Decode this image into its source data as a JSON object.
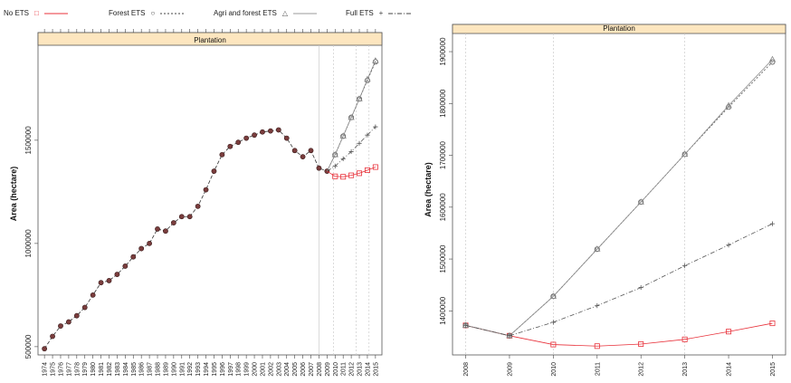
{
  "legend": [
    {
      "label": "No ETS",
      "symbol": "□",
      "color": "#e8313a",
      "dash": ""
    },
    {
      "label": "Forest ETS",
      "symbol": "○",
      "color": "#444444",
      "dash": "3,2"
    },
    {
      "label": "Agri and forest ETS",
      "symbol": "△",
      "color": "#888888",
      "dash": ""
    },
    {
      "label": "Full ETS",
      "symbol": "+",
      "color": "#444444",
      "dash": "5,2,1,2"
    }
  ],
  "chart_data": [
    {
      "type": "line",
      "strip_label": "Plantation",
      "ylabel": "Area (hectare)",
      "xlabel": "",
      "ylim": [
        460000,
        1960000
      ],
      "yticks": [
        500000,
        1000000,
        1500000
      ],
      "ytick_labels": [
        "500000",
        "1000000",
        "1500000"
      ],
      "x": [
        1974,
        1975,
        1976,
        1977,
        1978,
        1979,
        1980,
        1981,
        1982,
        1983,
        1984,
        1985,
        1986,
        1987,
        1988,
        1989,
        1990,
        1991,
        1992,
        1993,
        1994,
        1995,
        1996,
        1997,
        1998,
        1999,
        2000,
        2001,
        2002,
        2003,
        2004,
        2005,
        2006,
        2007,
        2008,
        2009,
        2010,
        2011,
        2012,
        2013,
        2014,
        2015
      ],
      "x_labels": [
        "1974",
        "1975",
        "1976",
        "1977",
        "1978",
        "1979",
        "1980",
        "1981",
        "1982",
        "1983",
        "1984",
        "1985",
        "1986",
        "1987",
        "1988",
        "1989",
        "1990",
        "1991",
        "1992",
        "1993",
        "1994",
        "1995",
        "1996",
        "1997",
        "1998",
        "1999",
        "2000",
        "2001",
        "2002",
        "2003",
        "2004",
        "2005",
        "2006",
        "2007",
        "2008",
        "2009",
        "2010",
        "2011",
        "2012",
        "2013",
        "2014",
        "2015"
      ],
      "vlines": [
        2008,
        2009.8,
        2012.6,
        2014.2
      ],
      "historical": {
        "x": [
          1974,
          1975,
          1976,
          1977,
          1978,
          1979,
          1980,
          1981,
          1982,
          1983,
          1984,
          1985,
          1986,
          1987,
          1988,
          1989,
          1990,
          1991,
          1992,
          1993,
          1994,
          1995,
          1996,
          1997,
          1998,
          1999,
          2000,
          2001,
          2002,
          2003,
          2004,
          2005,
          2006,
          2007,
          2008,
          2009
        ],
        "values": [
          490000,
          550000,
          600000,
          620000,
          650000,
          690000,
          750000,
          810000,
          820000,
          850000,
          890000,
          935000,
          975000,
          1000000,
          1070000,
          1060000,
          1100000,
          1130000,
          1130000,
          1180000,
          1260000,
          1350000,
          1430000,
          1470000,
          1490000,
          1510000,
          1525000,
          1540000,
          1545000,
          1550000,
          1510000,
          1450000,
          1420000,
          1450000,
          1365000,
          1350000
        ]
      },
      "series": [
        {
          "name": "No ETS",
          "x": [
            2010,
            2011,
            2012,
            2013,
            2014,
            2015
          ],
          "values": [
            1325000,
            1323000,
            1330000,
            1340000,
            1355000,
            1370000
          ]
        },
        {
          "name": "Forest ETS",
          "x": [
            2010,
            2011,
            2012,
            2013,
            2014,
            2015
          ],
          "values": [
            1430000,
            1520000,
            1610000,
            1700000,
            1790000,
            1880000
          ]
        },
        {
          "name": "Agri and forest ETS",
          "x": [
            2010,
            2011,
            2012,
            2013,
            2014,
            2015
          ],
          "values": [
            1430000,
            1520000,
            1610000,
            1700000,
            1795000,
            1885000
          ]
        },
        {
          "name": "Full ETS",
          "x": [
            2010,
            2011,
            2012,
            2013,
            2014,
            2015
          ],
          "values": [
            1375000,
            1410000,
            1445000,
            1485000,
            1525000,
            1565000
          ]
        }
      ]
    },
    {
      "type": "line",
      "strip_label": "Plantation",
      "ylabel": "Area (hectare)",
      "xlabel": "",
      "ylim": [
        1315000,
        1935000
      ],
      "yticks": [
        1400000,
        1500000,
        1600000,
        1700000,
        1800000,
        1900000
      ],
      "ytick_labels": [
        "1400000",
        "1500000",
        "1600000",
        "1700000",
        "1800000",
        "1900000"
      ],
      "x": [
        2008,
        2009,
        2010,
        2011,
        2012,
        2013,
        2014,
        2015
      ],
      "x_labels": [
        "2008",
        "2009",
        "2010",
        "2011",
        "2012",
        "2013",
        "2014",
        "2015"
      ],
      "vlines": [
        2008,
        2010,
        2013
      ],
      "series": [
        {
          "name": "No ETS",
          "x": [
            2008,
            2009,
            2010,
            2011,
            2012,
            2013,
            2014,
            2015
          ],
          "values": [
            1372000,
            1352000,
            1335000,
            1332000,
            1336000,
            1345000,
            1360000,
            1376000
          ]
        },
        {
          "name": "Forest ETS",
          "x": [
            2008,
            2009,
            2010,
            2011,
            2012,
            2013,
            2014,
            2015
          ],
          "values": [
            1372000,
            1352000,
            1428000,
            1519000,
            1610000,
            1702000,
            1793000,
            1880000
          ]
        },
        {
          "name": "Agri and forest ETS",
          "x": [
            2008,
            2009,
            2010,
            2011,
            2012,
            2013,
            2014,
            2015
          ],
          "values": [
            1372000,
            1352000,
            1428000,
            1519000,
            1610000,
            1702000,
            1796000,
            1885000
          ]
        },
        {
          "name": "Full ETS",
          "x": [
            2008,
            2009,
            2010,
            2011,
            2012,
            2013,
            2014,
            2015
          ],
          "values": [
            1372000,
            1352000,
            1378000,
            1410000,
            1445000,
            1487000,
            1527000,
            1568000
          ]
        }
      ]
    }
  ]
}
